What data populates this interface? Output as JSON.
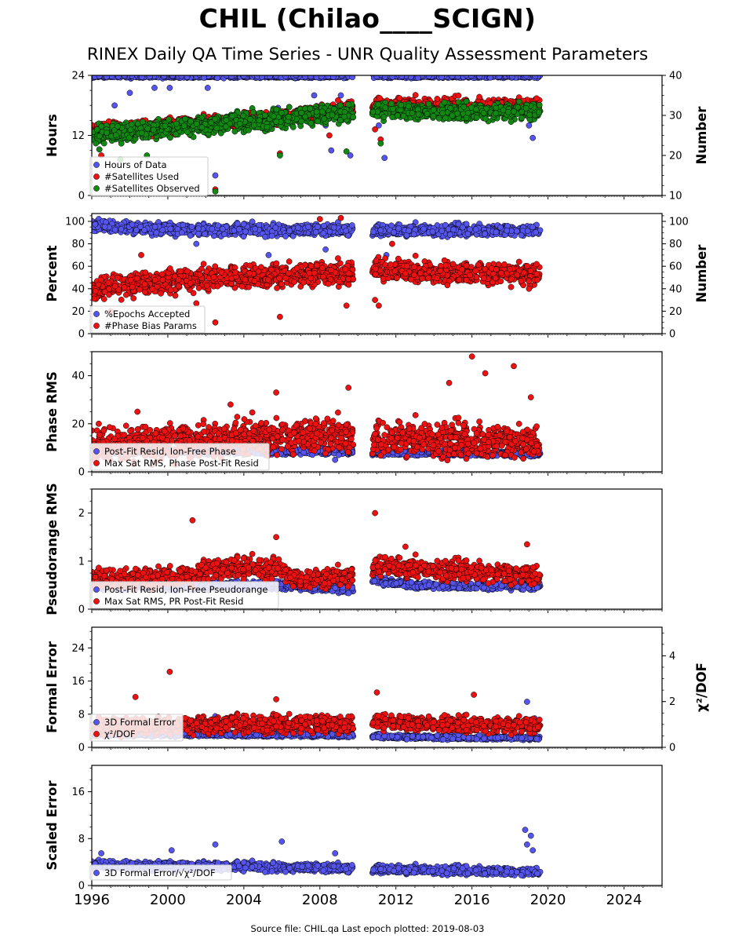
{
  "header": {
    "title": "CHIL (Chilao____SCIGN)",
    "subtitle": "RINEX Daily QA Time Series - UNR Quality Assessment Parameters"
  },
  "footer": {
    "text": "Source file: CHIL.qa Last epoch plotted: 2019-08-03"
  },
  "colors": {
    "blue": "#5555ee",
    "red": "#ee1111",
    "green": "#118811"
  },
  "chart_data": {
    "type": "scatter",
    "x_axis": {
      "range": [
        1996.0,
        2026.0
      ],
      "tick_labels": [
        "1996",
        "2000",
        "2004",
        "2008",
        "2012",
        "2016",
        "2020",
        "2024"
      ],
      "data_start": 1996.0,
      "gap": [
        2009.75,
        2010.75
      ],
      "data_end": 2019.59
    },
    "panels": [
      {
        "ylabel": "Hours",
        "ylim": [
          0,
          24
        ],
        "yticks": [
          "0",
          "12",
          "24"
        ],
        "y2label": "Number",
        "y2lim": [
          10,
          40
        ],
        "y2ticks": [
          "10",
          "20",
          "30",
          "40"
        ],
        "legend": [
          "Hours of Data",
          "#Satellites Used",
          "#Satellites Observed"
        ],
        "series": [
          {
            "name": "Hours of Data",
            "color": "blue",
            "axis": "left",
            "profile": [
              [
                1996,
                23.8
              ],
              [
                2019.6,
                23.8
              ]
            ],
            "scatter": 0.15,
            "outliers": [
              [
                1997.2,
                18
              ],
              [
                1998.0,
                20.5
              ],
              [
                1999.3,
                21.5
              ],
              [
                2000.1,
                21.5
              ],
              [
                2002.1,
                21.5
              ],
              [
                2002.5,
                4
              ],
              [
                2005.2,
                16
              ],
              [
                2005.8,
                17.5
              ],
              [
                2006.8,
                17
              ],
              [
                2007.7,
                20
              ],
              [
                2008.3,
                14
              ],
              [
                2008.6,
                9
              ],
              [
                2009.1,
                20
              ],
              [
                2009.6,
                8
              ],
              [
                2010.9,
                18
              ],
              [
                2011.1,
                14
              ],
              [
                2011.4,
                7.5
              ],
              [
                2011.9,
                16
              ],
              [
                2016.3,
                18
              ],
              [
                2019.0,
                14
              ],
              [
                2019.2,
                11.5
              ]
            ]
          },
          {
            "name": "#Satellites Used",
            "color": "red",
            "axis": "right",
            "profile": [
              [
                1996,
                26
              ],
              [
                2001.5,
                28
              ],
              [
                2004.5,
                29
              ],
              [
                2007.5,
                30.5
              ],
              [
                2009.7,
                32
              ],
              [
                2010.8,
                32.5
              ],
              [
                2019.6,
                32.5
              ]
            ],
            "scatter": 0.9,
            "outliers": [
              [
                1996.5,
                20
              ],
              [
                1996.9,
                28.5
              ],
              [
                2000.1,
                25.5
              ],
              [
                2002.5,
                11.5
              ],
              [
                2005.9,
                20.5
              ],
              [
                2008.5,
                25
              ],
              [
                2010.9,
                26.5
              ],
              [
                2011.2,
                24
              ]
            ]
          },
          {
            "name": "#Satellites Observed",
            "color": "green",
            "axis": "right",
            "profile": [
              [
                1996,
                25
              ],
              [
                2001.5,
                27.5
              ],
              [
                2004.5,
                28.5
              ],
              [
                2007.5,
                30
              ],
              [
                2009.7,
                31
              ],
              [
                2010.8,
                31
              ],
              [
                2019.6,
                31
              ]
            ],
            "scatter": 1.1,
            "outliers": [
              [
                1996.4,
                21.5
              ],
              [
                1997.5,
                19
              ],
              [
                1998.9,
                20
              ],
              [
                2002.5,
                11
              ],
              [
                2005.9,
                20
              ],
              [
                2009.4,
                21
              ],
              [
                2011.2,
                23
              ]
            ]
          }
        ]
      },
      {
        "ylabel": "Percent",
        "ylim": [
          0,
          107
        ],
        "yticks": [
          "0",
          "20",
          "40",
          "60",
          "80",
          "100"
        ],
        "y2label": "Number",
        "y2lim": [
          0,
          107
        ],
        "y2ticks": [
          "0",
          "20",
          "40",
          "60",
          "80",
          "100"
        ],
        "legend": [
          "%Epochs Accepted",
          "#Phase Bias Params"
        ],
        "series": [
          {
            "name": "%Epochs Accepted",
            "color": "blue",
            "axis": "left",
            "profile": [
              [
                1996,
                96
              ],
              [
                2002,
                92
              ],
              [
                2009.7,
                93
              ],
              [
                2010.8,
                92
              ],
              [
                2019.6,
                92
              ]
            ],
            "scatter": 2.5,
            "outliers": [
              [
                2001.5,
                80
              ],
              [
                2005.3,
                70
              ],
              [
                2008.3,
                75
              ],
              [
                2011.5,
                70
              ]
            ]
          },
          {
            "name": "#Phase Bias Params",
            "color": "red",
            "axis": "right",
            "profile": [
              [
                1996,
                40
              ],
              [
                2002,
                50
              ],
              [
                2006,
                52
              ],
              [
                2009.7,
                55
              ],
              [
                2010.8,
                58
              ],
              [
                2013,
                55
              ],
              [
                2016,
                55
              ],
              [
                2019.6,
                52
              ]
            ],
            "scatter": 5,
            "outliers": [
              [
                1997.0,
                20
              ],
              [
                1998.6,
                70
              ],
              [
                2001.5,
                27
              ],
              [
                2002.5,
                10
              ],
              [
                2005.9,
                15
              ],
              [
                2008.0,
                102
              ],
              [
                2009.1,
                103
              ],
              [
                2009.4,
                25
              ],
              [
                2010.9,
                30
              ],
              [
                2011.1,
                25
              ],
              [
                2011.8,
                80
              ],
              [
                2019.0,
                40
              ]
            ]
          }
        ]
      },
      {
        "ylabel": "Phase RMS",
        "ylim": [
          0,
          50
        ],
        "yticks": [
          "0",
          "20",
          "40"
        ],
        "legend": [
          "Post-Fit Resid, Ion-Free Phase",
          "Max Sat RMS, Phase Post-Fit Resid"
        ],
        "series": [
          {
            "name": "Post-Fit Resid, Ion-Free Phase",
            "color": "blue",
            "axis": "left",
            "profile": [
              [
                1996,
                8.5
              ],
              [
                2009.7,
                8.5
              ],
              [
                2010.8,
                8
              ],
              [
                2019.6,
                7.5
              ]
            ],
            "scatter": 0.6,
            "outliers": [
              [
                2008.8,
                5
              ]
            ]
          },
          {
            "name": "Max Sat RMS, Phase Post-Fit Resid",
            "color": "red",
            "axis": "left",
            "profile": [
              [
                1996,
                11
              ],
              [
                2002,
                13
              ],
              [
                2006,
                15
              ],
              [
                2009.7,
                16
              ],
              [
                2010.8,
                14
              ],
              [
                2019.6,
                12
              ]
            ],
            "scatter": 3.5,
            "outliers": [
              [
                1998.4,
                25
              ],
              [
                2003.3,
                28
              ],
              [
                2005.7,
                33
              ],
              [
                2009.5,
                35
              ],
              [
                2014.8,
                37
              ],
              [
                2016.0,
                48
              ],
              [
                2016.7,
                41
              ],
              [
                2018.2,
                44
              ],
              [
                2019.1,
                31
              ]
            ]
          }
        ]
      },
      {
        "ylabel": "Pseudorange RMS",
        "ylim": [
          0,
          2.5
        ],
        "yticks": [
          "0",
          "1",
          "2"
        ],
        "legend": [
          "Post-Fit Resid, Ion-Free Pseudorange",
          "Max Sat RMS, PR Post-Fit Resid"
        ],
        "series": [
          {
            "name": "Post-Fit Resid, Ion-Free Pseudorange",
            "color": "blue",
            "axis": "left",
            "profile": [
              [
                1996,
                0.48
              ],
              [
                2006,
                0.5
              ],
              [
                2009.7,
                0.42
              ],
              [
                2010.8,
                0.6
              ],
              [
                2013,
                0.5
              ],
              [
                2019.6,
                0.48
              ]
            ],
            "scatter": 0.04,
            "outliers": []
          },
          {
            "name": "Max Sat RMS, PR Post-Fit Resid",
            "color": "red",
            "axis": "left",
            "profile": [
              [
                1996,
                0.6
              ],
              [
                2001.5,
                0.7
              ],
              [
                2002.2,
                0.85
              ],
              [
                2006,
                0.85
              ],
              [
                2007,
                0.6
              ],
              [
                2009.7,
                0.7
              ],
              [
                2010.8,
                0.9
              ],
              [
                2019.6,
                0.7
              ]
            ],
            "scatter": 0.1,
            "outliers": [
              [
                2001.3,
                1.85
              ],
              [
                2005.7,
                1.5
              ],
              [
                2010.9,
                2.0
              ],
              [
                2012.5,
                1.3
              ],
              [
                2018.9,
                1.35
              ]
            ]
          }
        ]
      },
      {
        "ylabel": "Formal Error",
        "ylim": [
          0,
          29
        ],
        "yticks": [
          "0",
          "8",
          "16",
          "24"
        ],
        "y2label": "χ²/DOF",
        "y2lim": [
          0,
          5.25
        ],
        "y2ticks": [
          "0",
          "2",
          "4"
        ],
        "legend": [
          "3D Formal Error",
          "χ²/DOF"
        ],
        "series": [
          {
            "name": "3D Formal Error",
            "color": "blue",
            "axis": "left",
            "profile": [
              [
                1996,
                3.2
              ],
              [
                2009.7,
                3.0
              ],
              [
                2010.8,
                2.8
              ],
              [
                2012,
                2.5
              ],
              [
                2019.6,
                2.2
              ]
            ],
            "scatter": 0.25,
            "outliers": [
              [
                2002.5,
                7.5
              ],
              [
                2018.9,
                11
              ],
              [
                2019.3,
                7
              ]
            ]
          },
          {
            "name": "χ²/DOF",
            "color": "red",
            "axis": "right",
            "profile": [
              [
                1996,
                0.85
              ],
              [
                2002,
                1.0
              ],
              [
                2009.7,
                1.05
              ],
              [
                2010.8,
                1.1
              ],
              [
                2019.6,
                0.95
              ]
            ],
            "scatter": 0.18,
            "outliers": [
              [
                1998.3,
                2.2
              ],
              [
                2000.1,
                3.3
              ],
              [
                2005.7,
                2.1
              ],
              [
                2011.0,
                2.4
              ],
              [
                2016.1,
                2.3
              ]
            ]
          }
        ]
      },
      {
        "ylabel": "Scaled Error",
        "ylim": [
          0,
          20.5
        ],
        "yticks": [
          "0",
          "8",
          "16"
        ],
        "legend": [
          "3D Formal Error/√χ²/DOF"
        ],
        "series": [
          {
            "name": "3D Formal Error/√χ²/DOF",
            "color": "blue",
            "axis": "left",
            "profile": [
              [
                1996,
                3.5
              ],
              [
                2009.7,
                3.0
              ],
              [
                2010.8,
                2.8
              ],
              [
                2019.6,
                2.3
              ]
            ],
            "scatter": 0.35,
            "outliers": [
              [
                1996.5,
                5.5
              ],
              [
                2000.2,
                6
              ],
              [
                2002.5,
                7
              ],
              [
                2006.0,
                7.5
              ],
              [
                2008.8,
                5.5
              ],
              [
                2018.8,
                9.5
              ],
              [
                2019.1,
                8.5
              ],
              [
                2018.9,
                7
              ],
              [
                2019.2,
                6
              ]
            ]
          }
        ]
      }
    ]
  }
}
